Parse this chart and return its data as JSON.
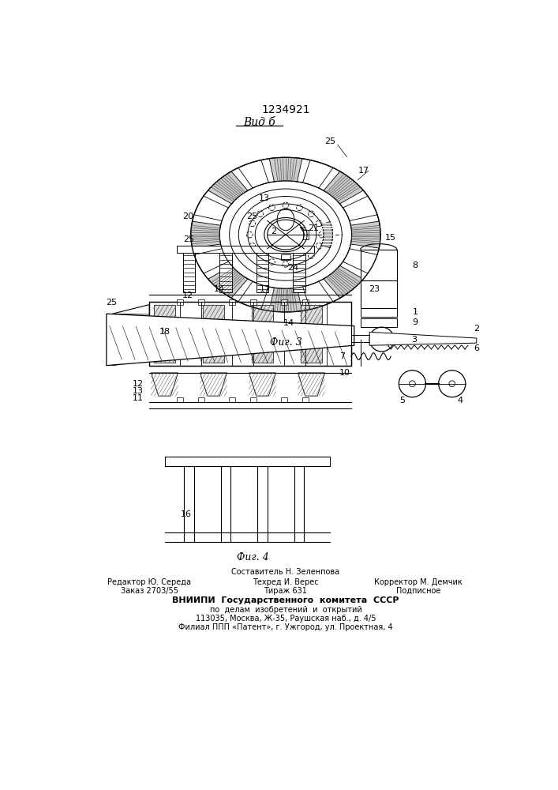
{
  "title": "1234921",
  "view_label": "Вид б",
  "fig3_label": "Фиг. 3",
  "fig4_label": "Фиг. 4",
  "footer_line1": "Составитель Н. Зеленпова",
  "footer_line2_left": "Редактор Ю. Середа",
  "footer_line2_center": "Техред И. Верес",
  "footer_line2_right": "Корректор М. Демчик",
  "footer_line3_left": "Заказ 2703/55",
  "footer_line3_center": "Тираж 631",
  "footer_line3_right": "Подписное",
  "footer_line4": "ВНИИПИ  Государственного  комитета  СССР",
  "footer_line5": "по  делам  изобретений  и  открытий",
  "footer_line6": "113035, Москва, Ж-35, Раушская наб., д. 4/5",
  "footer_line7": "Филиал ППП «Патент», г. Ужгород, ул. Проектная, 4",
  "bg_color": "#ffffff",
  "line_color": "#000000"
}
